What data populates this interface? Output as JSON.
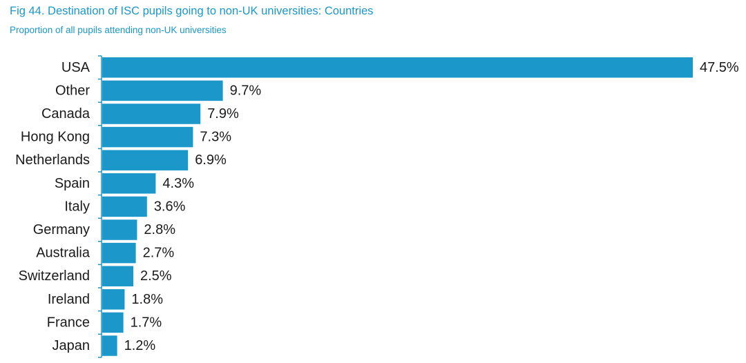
{
  "chart_data": {
    "type": "bar",
    "orientation": "horizontal",
    "title": "Fig 44. Destination of ISC pupils going to non-UK universities: Countries",
    "subtitle": "Proportion of all pupils attending non-UK universities",
    "categories": [
      "USA",
      "Other",
      "Canada",
      "Hong Kong",
      "Netherlands",
      "Spain",
      "Italy",
      "Germany",
      "Australia",
      "Switzerland",
      "Ireland",
      "France",
      "Japan"
    ],
    "values": [
      47.5,
      9.7,
      7.9,
      7.3,
      6.9,
      4.3,
      3.6,
      2.8,
      2.7,
      2.5,
      1.8,
      1.7,
      1.2
    ],
    "value_labels": [
      "47.5%",
      "9.7%",
      "7.9%",
      "7.3%",
      "6.9%",
      "4.3%",
      "3.6%",
      "2.8%",
      "2.7%",
      "2.5%",
      "1.8%",
      "1.7%",
      "1.2%"
    ],
    "unit": "%",
    "xlim": [
      0,
      47.5
    ],
    "grid": false,
    "legend": "none",
    "bar_color": "#1b97c9",
    "axis_color": "#1b97c9"
  }
}
